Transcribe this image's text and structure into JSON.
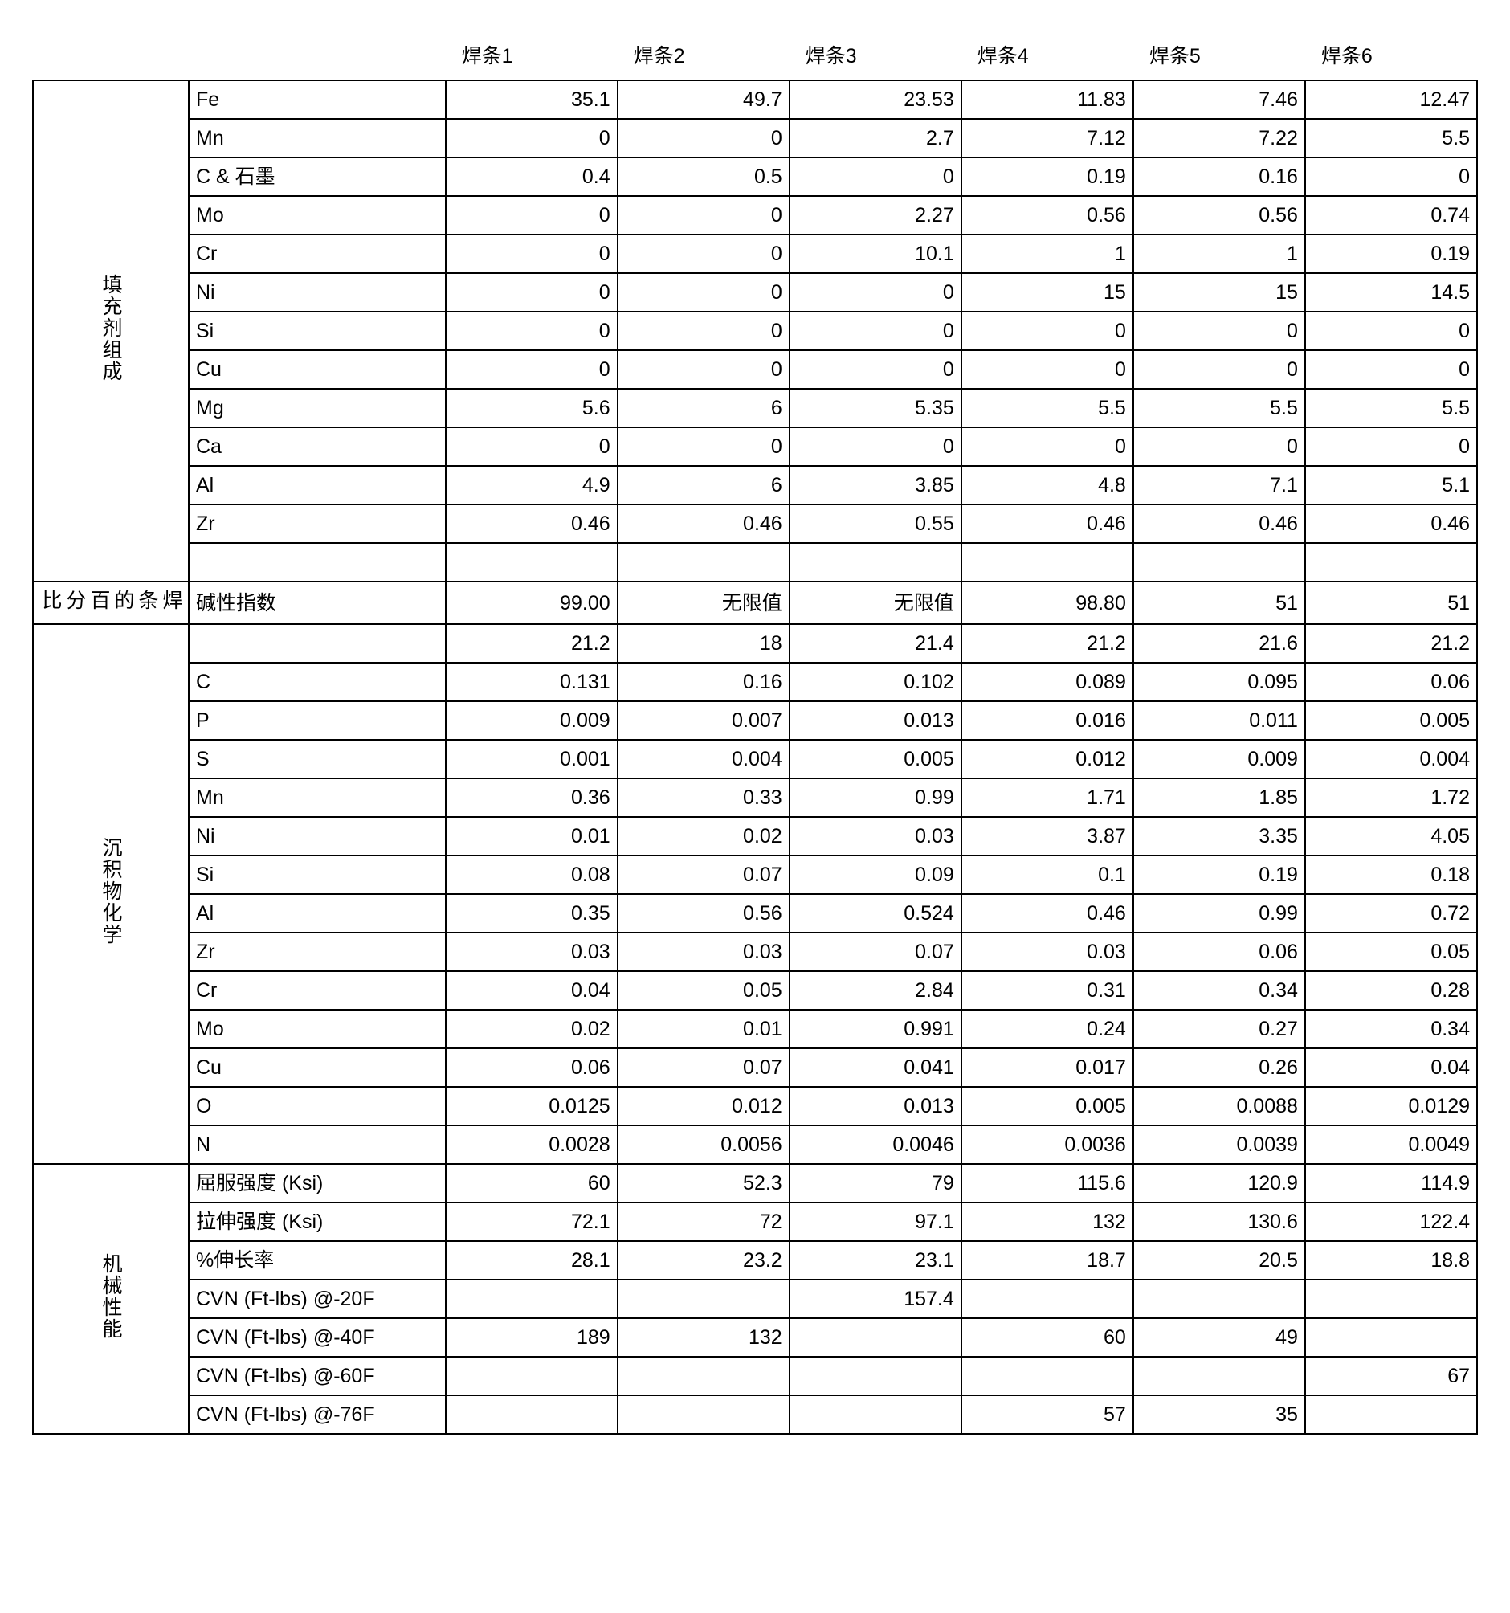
{
  "headers": [
    "焊条1",
    "焊条2",
    "焊条3",
    "焊条4",
    "焊条5",
    "焊条6"
  ],
  "sections": [
    {
      "title": "填充剂组成",
      "rows": [
        {
          "label": "Fe",
          "v": [
            "35.1",
            "49.7",
            "23.53",
            "11.83",
            "7.46",
            "12.47"
          ]
        },
        {
          "label": "Mn",
          "v": [
            "0",
            "0",
            "2.7",
            "7.12",
            "7.22",
            "5.5"
          ]
        },
        {
          "label": "C & 石墨",
          "v": [
            "0.4",
            "0.5",
            "0",
            "0.19",
            "0.16",
            "0"
          ]
        },
        {
          "label": "Mo",
          "v": [
            "0",
            "0",
            "2.27",
            "0.56",
            "0.56",
            "0.74"
          ]
        },
        {
          "label": "Cr",
          "v": [
            "0",
            "0",
            "10.1",
            "1",
            "1",
            "0.19"
          ]
        },
        {
          "label": "Ni",
          "v": [
            "0",
            "0",
            "0",
            "15",
            "15",
            "14.5"
          ]
        },
        {
          "label": "Si",
          "v": [
            "0",
            "0",
            "0",
            "0",
            "0",
            "0"
          ]
        },
        {
          "label": "Cu",
          "v": [
            "0",
            "0",
            "0",
            "0",
            "0",
            "0"
          ]
        },
        {
          "label": "Mg",
          "v": [
            "5.6",
            "6",
            "5.35",
            "5.5",
            "5.5",
            "5.5"
          ]
        },
        {
          "label": "Ca",
          "v": [
            "0",
            "0",
            "0",
            "0",
            "0",
            "0"
          ]
        },
        {
          "label": "Al",
          "v": [
            "4.9",
            "6",
            "3.85",
            "4.8",
            "7.1",
            "5.1"
          ]
        },
        {
          "label": "Zr",
          "v": [
            "0.46",
            "0.46",
            "0.55",
            "0.46",
            "0.46",
            "0.46"
          ]
        },
        {
          "label": "",
          "v": [
            "",
            "",
            "",
            "",
            "",
            ""
          ]
        }
      ]
    },
    {
      "title": "焊条的百分比",
      "rows": [
        {
          "label": "碱性指数",
          "v": [
            "99.00",
            "无限值",
            "无限值",
            "98.80",
            "51",
            "51"
          ]
        }
      ]
    },
    {
      "title": "沉积物化学",
      "rows": [
        {
          "label": "",
          "v": [
            "21.2",
            "18",
            "21.4",
            "21.2",
            "21.6",
            "21.2"
          ]
        },
        {
          "label": "C",
          "v": [
            "0.131",
            "0.16",
            "0.102",
            "0.089",
            "0.095",
            "0.06"
          ]
        },
        {
          "label": "P",
          "v": [
            "0.009",
            "0.007",
            "0.013",
            "0.016",
            "0.011",
            "0.005"
          ]
        },
        {
          "label": "S",
          "v": [
            "0.001",
            "0.004",
            "0.005",
            "0.012",
            "0.009",
            "0.004"
          ]
        },
        {
          "label": "Mn",
          "v": [
            "0.36",
            "0.33",
            "0.99",
            "1.71",
            "1.85",
            "1.72"
          ]
        },
        {
          "label": "Ni",
          "v": [
            "0.01",
            "0.02",
            "0.03",
            "3.87",
            "3.35",
            "4.05"
          ]
        },
        {
          "label": "Si",
          "v": [
            "0.08",
            "0.07",
            "0.09",
            "0.1",
            "0.19",
            "0.18"
          ]
        },
        {
          "label": "Al",
          "v": [
            "0.35",
            "0.56",
            "0.524",
            "0.46",
            "0.99",
            "0.72"
          ]
        },
        {
          "label": "Zr",
          "v": [
            "0.03",
            "0.03",
            "0.07",
            "0.03",
            "0.06",
            "0.05"
          ]
        },
        {
          "label": "Cr",
          "v": [
            "0.04",
            "0.05",
            "2.84",
            "0.31",
            "0.34",
            "0.28"
          ]
        },
        {
          "label": "Mo",
          "v": [
            "0.02",
            "0.01",
            "0.991",
            "0.24",
            "0.27",
            "0.34"
          ]
        },
        {
          "label": "Cu",
          "v": [
            "0.06",
            "0.07",
            "0.041",
            "0.017",
            "0.26",
            "0.04"
          ]
        },
        {
          "label": "O",
          "v": [
            "0.0125",
            "0.012",
            "0.013",
            "0.005",
            "0.0088",
            "0.0129"
          ]
        },
        {
          "label": "N",
          "v": [
            "0.0028",
            "0.0056",
            "0.0046",
            "0.0036",
            "0.0039",
            "0.0049"
          ]
        }
      ]
    },
    {
      "title": "机械性能",
      "rows": [
        {
          "label": "屈服强度 (Ksi)",
          "v": [
            "60",
            "52.3",
            "79",
            "115.6",
            "120.9",
            "114.9"
          ]
        },
        {
          "label": "拉伸强度 (Ksi)",
          "v": [
            "72.1",
            "72",
            "97.1",
            "132",
            "130.6",
            "122.4"
          ]
        },
        {
          "label": "%伸长率",
          "v": [
            "28.1",
            "23.2",
            "23.1",
            "18.7",
            "20.5",
            "18.8"
          ]
        },
        {
          "label": "CVN (Ft-lbs) @-20F",
          "v": [
            "",
            "",
            "157.4",
            "",
            "",
            ""
          ]
        },
        {
          "label": "CVN (Ft-lbs) @-40F",
          "v": [
            "189",
            "132",
            "",
            "60",
            "49",
            ""
          ]
        },
        {
          "label": "CVN (Ft-lbs) @-60F",
          "v": [
            "",
            "",
            "",
            "",
            "",
            "67"
          ]
        },
        {
          "label": "CVN (Ft-lbs) @-76F",
          "v": [
            "",
            "",
            "",
            "57",
            "35",
            ""
          ]
        }
      ]
    }
  ]
}
